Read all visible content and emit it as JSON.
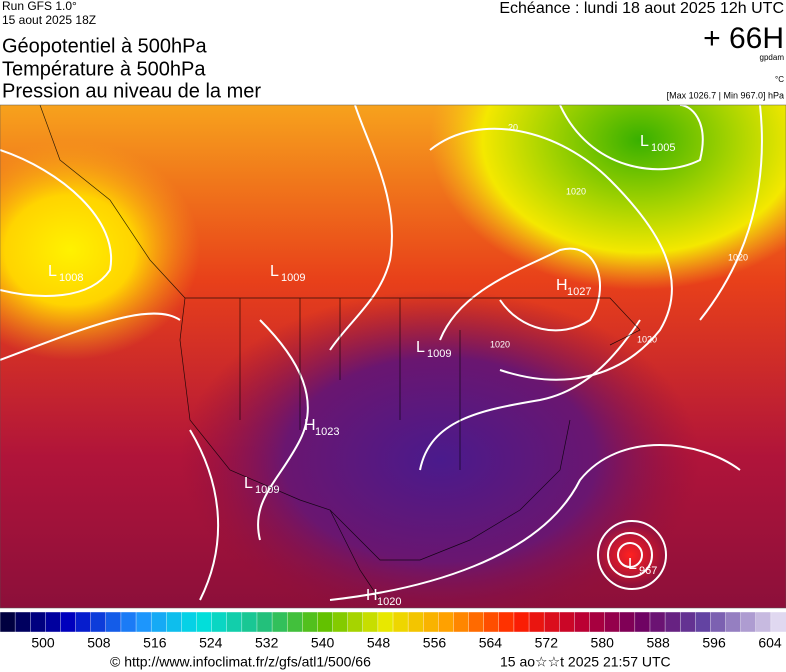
{
  "header": {
    "run": "Run GFS 1.0°",
    "date": "15 aout 2025 18Z",
    "titles": [
      "Géopotentiel à 500hPa",
      "Température à 500hPa",
      "Pression au niveau de la mer"
    ],
    "echeance": "Echéance : lundi 18 aout 2025 12h UTC",
    "lead": "+ 66H",
    "unit_gpdam": "gpdam",
    "unit_temp": "°C",
    "maxmin": "[Max 1026.7 | Min 967.0] hPa"
  },
  "centers": [
    {
      "type": "L",
      "value": "1008"
    },
    {
      "type": "L",
      "value": "1009"
    },
    {
      "type": "L",
      "value": "1005"
    },
    {
      "type": "H",
      "value": "1027"
    },
    {
      "type": "L",
      "value": "1009"
    },
    {
      "type": "H",
      "value": "1023"
    },
    {
      "type": "L",
      "value": "1009"
    },
    {
      "type": "L",
      "value": "967"
    },
    {
      "type": "H",
      "value": "1020"
    }
  ],
  "contour_labels": [
    "20",
    "1020",
    "1020",
    "1020",
    "1020"
  ],
  "colorbar": {
    "ticks": [
      "500",
      "508",
      "516",
      "524",
      "532",
      "540",
      "548",
      "556",
      "564",
      "572",
      "580",
      "588",
      "596",
      "604"
    ]
  },
  "footer": {
    "source": "© http://www.infoclimat.fr/z/gfs/atl1/500/66",
    "generated": "15 ao☆☆t 2025 21:57 UTC"
  }
}
